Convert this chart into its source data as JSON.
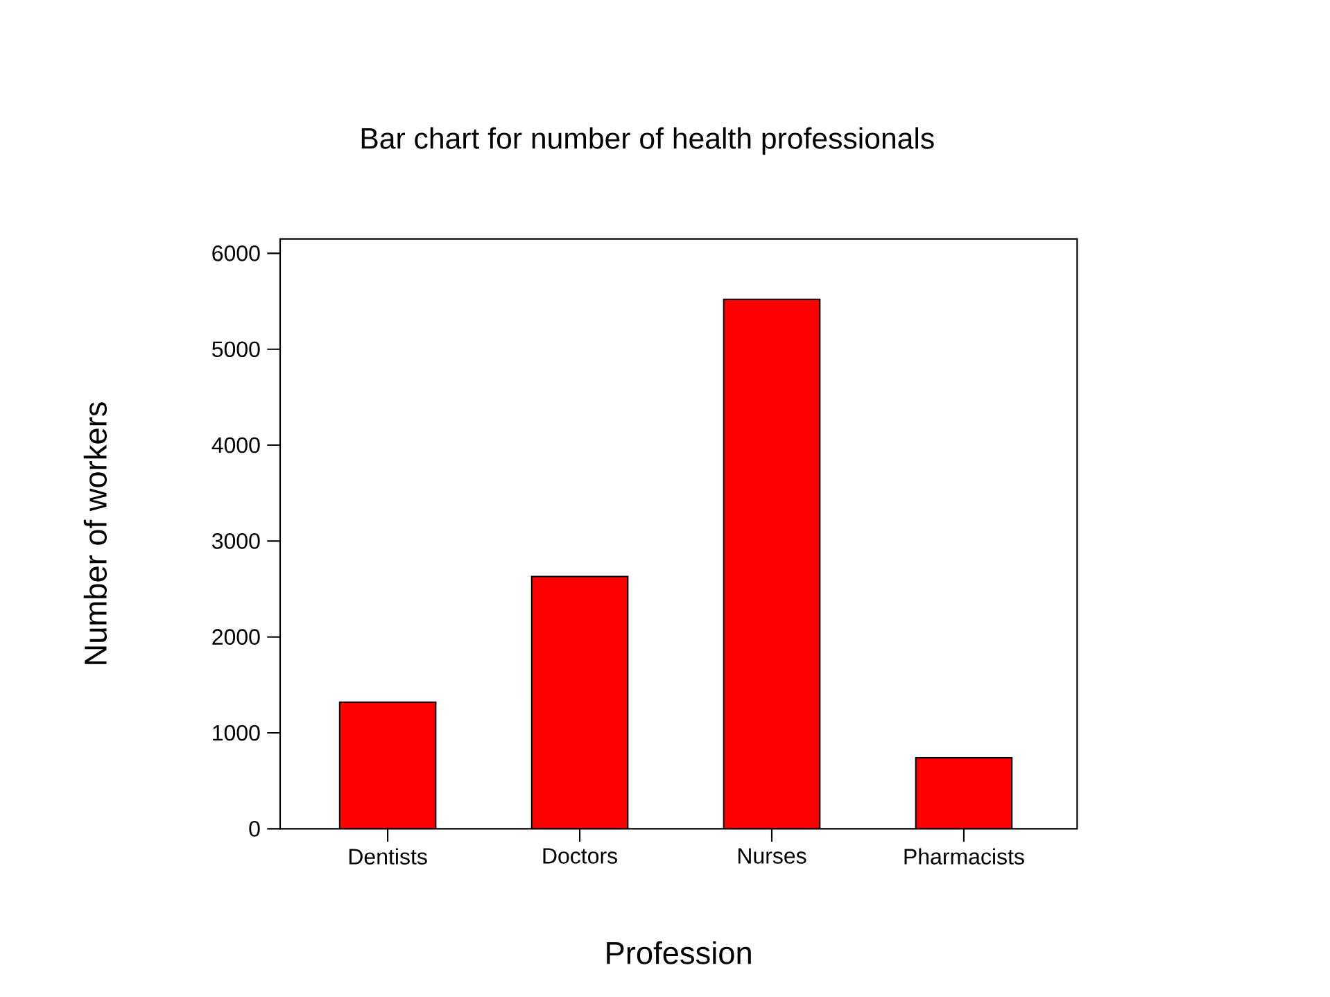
{
  "chart_data": {
    "type": "bar",
    "title": "Bar chart for number of health professionals",
    "xlabel": "Profession",
    "ylabel": "Number of workers",
    "categories": [
      "Dentists",
      "Doctors",
      "Nurses",
      "Pharmacists"
    ],
    "values": [
      1320,
      2630,
      5520,
      740
    ],
    "color": "#ff0000",
    "ylim": [
      0,
      6150
    ],
    "yticks": [
      0,
      1000,
      2000,
      3000,
      4000,
      5000,
      6000
    ],
    "grid": false
  }
}
